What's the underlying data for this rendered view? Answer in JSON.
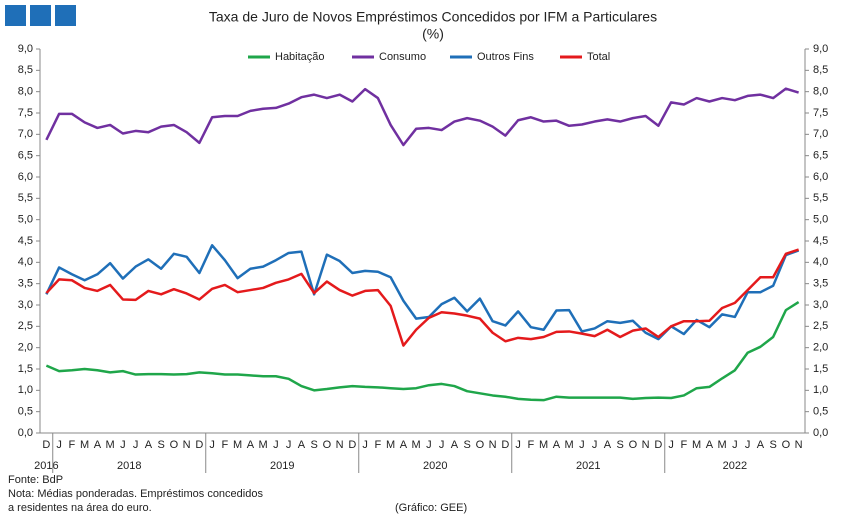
{
  "chart_data": {
    "type": "line",
    "title": "Taxa de Juro de Novos Empréstimos Concedidos por IFM a Particulares",
    "subtitle": "(%)",
    "categories": [
      "D",
      "J",
      "F",
      "M",
      "A",
      "M",
      "J",
      "J",
      "A",
      "S",
      "O",
      "N",
      "D",
      "J",
      "F",
      "M",
      "A",
      "M",
      "J",
      "J",
      "A",
      "S",
      "O",
      "N",
      "D",
      "J",
      "F",
      "M",
      "A",
      "M",
      "J",
      "J",
      "A",
      "S",
      "O",
      "N",
      "D",
      "J",
      "F",
      "M",
      "A",
      "M",
      "J",
      "J",
      "A",
      "S",
      "O",
      "N",
      "D",
      "J",
      "F",
      "M",
      "A",
      "M",
      "J",
      "J",
      "A",
      "S",
      "O",
      "N"
    ],
    "groups": [
      {
        "label": "2016",
        "size": 1
      },
      {
        "label": "2018",
        "size": 12
      },
      {
        "label": "2019",
        "size": 12
      },
      {
        "label": "2020",
        "size": 12
      },
      {
        "label": "2021",
        "size": 12
      },
      {
        "label": "2022",
        "size": 11
      }
    ],
    "series": [
      {
        "name": "Habitação",
        "color": "#1fa64a",
        "values": [
          1.58,
          1.45,
          1.47,
          1.5,
          1.47,
          1.42,
          1.45,
          1.37,
          1.38,
          1.38,
          1.37,
          1.38,
          1.42,
          1.4,
          1.37,
          1.37,
          1.35,
          1.33,
          1.33,
          1.27,
          1.1,
          1.0,
          1.03,
          1.07,
          1.1,
          1.08,
          1.07,
          1.05,
          1.03,
          1.05,
          1.12,
          1.15,
          1.1,
          0.98,
          0.93,
          0.88,
          0.85,
          0.8,
          0.78,
          0.77,
          0.85,
          0.83,
          0.83,
          0.83,
          0.83,
          0.83,
          0.8,
          0.82,
          0.83,
          0.82,
          0.88,
          1.05,
          1.08,
          1.28,
          1.47,
          1.88,
          2.02,
          2.25,
          2.88,
          3.07
        ]
      },
      {
        "name": "Consumo",
        "color": "#7030a0",
        "values": [
          6.87,
          7.48,
          7.48,
          7.28,
          7.15,
          7.22,
          7.02,
          7.08,
          7.05,
          7.18,
          7.22,
          7.05,
          6.8,
          7.4,
          7.43,
          7.43,
          7.55,
          7.6,
          7.62,
          7.72,
          7.87,
          7.93,
          7.85,
          7.93,
          7.77,
          8.06,
          7.85,
          7.22,
          6.75,
          7.13,
          7.15,
          7.1,
          7.3,
          7.38,
          7.32,
          7.18,
          6.97,
          7.33,
          7.4,
          7.3,
          7.32,
          7.2,
          7.23,
          7.3,
          7.35,
          7.3,
          7.38,
          7.43,
          7.2,
          7.75,
          7.7,
          7.85,
          7.77,
          7.85,
          7.8,
          7.9,
          7.93,
          7.85,
          8.07,
          7.98
        ]
      },
      {
        "name": "Outros Fins",
        "color": "#1f6fb8",
        "values": [
          3.25,
          3.88,
          3.72,
          3.58,
          3.72,
          3.98,
          3.62,
          3.9,
          4.07,
          3.85,
          4.2,
          4.13,
          3.75,
          4.4,
          4.05,
          3.63,
          3.85,
          3.9,
          4.05,
          4.22,
          4.25,
          3.25,
          4.18,
          4.03,
          3.75,
          3.8,
          3.78,
          3.65,
          3.1,
          2.68,
          2.72,
          3.02,
          3.17,
          2.85,
          3.15,
          2.62,
          2.52,
          2.85,
          2.48,
          2.42,
          2.87,
          2.88,
          2.38,
          2.45,
          2.62,
          2.58,
          2.63,
          2.35,
          2.2,
          2.5,
          2.32,
          2.65,
          2.48,
          2.78,
          2.72,
          3.3,
          3.3,
          3.45,
          4.17,
          4.28
        ]
      },
      {
        "name": "Total",
        "color": "#e41a1c",
        "values": [
          3.28,
          3.6,
          3.58,
          3.4,
          3.33,
          3.47,
          3.13,
          3.12,
          3.33,
          3.25,
          3.37,
          3.27,
          3.13,
          3.38,
          3.47,
          3.3,
          3.35,
          3.4,
          3.52,
          3.6,
          3.73,
          3.28,
          3.55,
          3.35,
          3.22,
          3.33,
          3.35,
          2.98,
          2.05,
          2.42,
          2.7,
          2.83,
          2.8,
          2.75,
          2.68,
          2.35,
          2.15,
          2.23,
          2.2,
          2.25,
          2.37,
          2.38,
          2.33,
          2.27,
          2.42,
          2.25,
          2.4,
          2.45,
          2.25,
          2.5,
          2.62,
          2.62,
          2.63,
          2.93,
          3.05,
          3.35,
          3.65,
          3.65,
          4.2,
          4.3
        ]
      }
    ],
    "ylim": [
      0,
      9
    ],
    "yticks": [
      {
        "value": 0,
        "label": "0,0"
      },
      {
        "value": 0.5,
        "label": "0,5"
      },
      {
        "value": 1,
        "label": "1,0"
      },
      {
        "value": 1.5,
        "label": "1,5"
      },
      {
        "value": 2,
        "label": "2,0"
      },
      {
        "value": 2.5,
        "label": "2,5"
      },
      {
        "value": 3,
        "label": "3,0"
      },
      {
        "value": 3.5,
        "label": "3,5"
      },
      {
        "value": 4,
        "label": "4,0"
      },
      {
        "value": 4.5,
        "label": "4,5"
      },
      {
        "value": 5,
        "label": "5,0"
      },
      {
        "value": 5.5,
        "label": "5,5"
      },
      {
        "value": 6,
        "label": "6,0"
      },
      {
        "value": 6.5,
        "label": "6,5"
      },
      {
        "value": 7,
        "label": "7,0"
      },
      {
        "value": 7.5,
        "label": "7,5"
      },
      {
        "value": 8,
        "label": "8,0"
      },
      {
        "value": 8.5,
        "label": "8,5"
      },
      {
        "value": 9,
        "label": "9,0"
      }
    ],
    "grid": false,
    "legend": "top",
    "notes": [
      "Fonte: BdP",
      "Nota: Médias ponderadas. Empréstimos concedidos",
      "a residentes na área do euro."
    ],
    "credit": "(Gráfico: GEE)"
  }
}
